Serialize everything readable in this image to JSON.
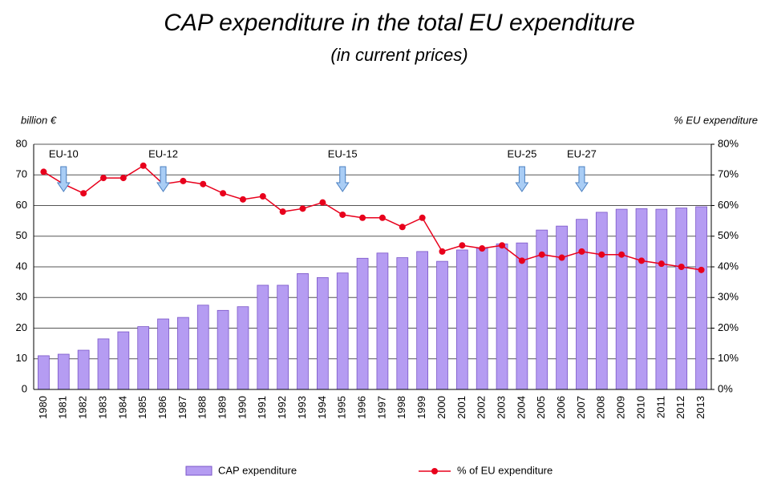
{
  "chart_data": {
    "type": "bar-line",
    "title": "CAP expenditure in the total EU expenditure",
    "subtitle": "(in current prices)",
    "y_label": "billion €",
    "y2_label": "% EU expenditure",
    "categories": [
      "1980",
      "1981",
      "1982",
      "1983",
      "1984",
      "1985",
      "1986",
      "1987",
      "1988",
      "1989",
      "1990",
      "1991",
      "1992",
      "1993",
      "1994",
      "1995",
      "1996",
      "1997",
      "1998",
      "1999",
      "2000",
      "2001",
      "2002",
      "2003",
      "2004",
      "2005",
      "2006",
      "2007",
      "2008",
      "2009",
      "2010",
      "2011",
      "2012",
      "2013"
    ],
    "series": [
      {
        "name": "CAP expenditure",
        "type": "bar",
        "color": "#b59cf2",
        "values": [
          11,
          11.5,
          12.8,
          16.5,
          18.8,
          20.5,
          23,
          23.5,
          27.5,
          25.8,
          27,
          34,
          34,
          37.8,
          36.5,
          38,
          42.8,
          44.5,
          43,
          45,
          41.8,
          45.5,
          46,
          47.5,
          47.8,
          52,
          53.3,
          55.5,
          57.8,
          58.8,
          59,
          58.8,
          59.2,
          59.6
        ]
      },
      {
        "name": "% of EU expenditure",
        "type": "line",
        "axis": "y2",
        "color": "#e8001c",
        "values": [
          71,
          67,
          64,
          69,
          69,
          73,
          67,
          68,
          67,
          64,
          62,
          63,
          58,
          59,
          61,
          57,
          56,
          56,
          53,
          56,
          45,
          47,
          46,
          47,
          42,
          44,
          43,
          45,
          44,
          44,
          42,
          41,
          40,
          39
        ]
      }
    ],
    "annotations": [
      {
        "label": "EU-10",
        "category": "1981"
      },
      {
        "label": "EU-12",
        "category": "1986"
      },
      {
        "label": "EU-15",
        "category": "1995"
      },
      {
        "label": "EU-25",
        "category": "2004"
      },
      {
        "label": "EU-27",
        "category": "2007"
      }
    ],
    "ylim": [
      0,
      80
    ],
    "yticks": [
      0,
      10,
      20,
      30,
      40,
      50,
      60,
      70,
      80
    ],
    "y2lim": [
      0,
      80
    ],
    "y2ticks": [
      {
        "value": 0,
        "label": "0%"
      },
      {
        "value": 10,
        "label": "10%"
      },
      {
        "value": 20,
        "label": "20%"
      },
      {
        "value": 30,
        "label": "30%"
      },
      {
        "value": 40,
        "label": "40%"
      },
      {
        "value": 50,
        "label": "50%"
      },
      {
        "value": 60,
        "label": "60%"
      },
      {
        "value": 70,
        "label": "70%"
      },
      {
        "value": 80,
        "label": "80%"
      }
    ],
    "grid": true
  }
}
